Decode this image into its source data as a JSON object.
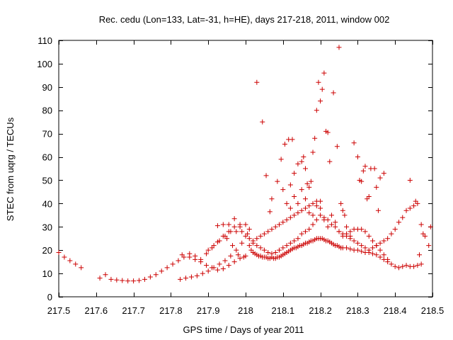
{
  "chart_data": {
    "type": "scatter",
    "title": "Rec. cedu (Lon=133, Lat=-31, h=HE), days 217-218, 2011, window 002",
    "xlabel": "GPS time / Days of year 2011",
    "ylabel": "STEC from uqrg / TECUs",
    "xlim": [
      217.5,
      218.5
    ],
    "ylim": [
      0,
      110
    ],
    "x_ticks": [
      217.5,
      217.6,
      217.7,
      217.8,
      217.9,
      218.0,
      218.1,
      218.2,
      218.3,
      218.4,
      218.5
    ],
    "x_tick_labels": [
      "217.5",
      "217.6",
      "217.7",
      "217.8",
      "217.9",
      "218",
      "218.1",
      "218.2",
      "218.3",
      "218.4",
      "218.5"
    ],
    "y_ticks": [
      0,
      10,
      20,
      30,
      40,
      50,
      60,
      70,
      80,
      90,
      100,
      110
    ],
    "y_tick_labels": [
      "0",
      "10",
      "20",
      "30",
      "40",
      "50",
      "60",
      "70",
      "80",
      "90",
      "100",
      "110"
    ],
    "grid": false,
    "marker": "+",
    "marker_color": "#cc0000",
    "series": [
      {
        "name": "STEC",
        "points": [
          [
            217.5,
            19
          ],
          [
            217.515,
            17
          ],
          [
            217.53,
            15.5
          ],
          [
            217.545,
            14
          ],
          [
            217.56,
            12.5
          ],
          [
            217.61,
            8
          ],
          [
            217.625,
            9.5
          ],
          [
            217.64,
            7.5
          ],
          [
            217.655,
            7.2
          ],
          [
            217.67,
            7
          ],
          [
            217.685,
            6.8
          ],
          [
            217.7,
            6.8
          ],
          [
            217.715,
            7
          ],
          [
            217.73,
            7.5
          ],
          [
            217.745,
            8.5
          ],
          [
            217.76,
            9.5
          ],
          [
            217.775,
            11
          ],
          [
            217.79,
            12.5
          ],
          [
            217.805,
            14
          ],
          [
            217.82,
            15.5
          ],
          [
            217.835,
            17
          ],
          [
            217.85,
            17
          ],
          [
            217.865,
            16
          ],
          [
            217.88,
            15
          ],
          [
            217.895,
            13.5
          ],
          [
            217.91,
            12.5
          ],
          [
            217.925,
            11.5
          ],
          [
            217.94,
            12
          ],
          [
            217.955,
            13.5
          ],
          [
            217.97,
            15
          ],
          [
            217.985,
            16.5
          ],
          [
            218.0,
            17.5
          ],
          [
            217.825,
            7.5
          ],
          [
            217.84,
            8
          ],
          [
            217.855,
            8.5
          ],
          [
            217.87,
            9
          ],
          [
            217.885,
            10
          ],
          [
            217.9,
            11
          ],
          [
            217.915,
            12.5
          ],
          [
            217.93,
            14
          ],
          [
            217.945,
            15.5
          ],
          [
            217.96,
            17.5
          ],
          [
            217.975,
            20
          ],
          [
            217.99,
            23
          ],
          [
            217.83,
            18
          ],
          [
            217.85,
            18.5
          ],
          [
            217.865,
            17.5
          ],
          [
            217.88,
            16
          ],
          [
            217.895,
            18.5
          ],
          [
            217.91,
            21
          ],
          [
            217.925,
            23.5
          ],
          [
            217.94,
            26
          ],
          [
            217.955,
            28
          ],
          [
            217.97,
            30
          ],
          [
            217.985,
            31
          ],
          [
            218.0,
            31
          ],
          [
            217.9,
            20
          ],
          [
            217.915,
            22
          ],
          [
            217.93,
            24
          ],
          [
            217.945,
            26
          ],
          [
            217.96,
            28
          ],
          [
            217.975,
            28
          ],
          [
            217.99,
            28
          ],
          [
            218.005,
            27
          ],
          [
            217.925,
            30.5
          ],
          [
            217.94,
            31
          ],
          [
            217.955,
            31
          ],
          [
            217.97,
            33.5
          ],
          [
            217.985,
            30
          ],
          [
            217.95,
            25
          ],
          [
            217.965,
            22
          ],
          [
            217.98,
            18
          ],
          [
            217.995,
            17
          ],
          [
            218.01,
            29
          ],
          [
            218.015,
            20
          ],
          [
            218.02,
            19
          ],
          [
            218.025,
            18.5
          ],
          [
            218.03,
            18
          ],
          [
            218.035,
            17.5
          ],
          [
            218.04,
            17.5
          ],
          [
            218.045,
            17
          ],
          [
            218.05,
            17
          ],
          [
            218.055,
            17
          ],
          [
            218.06,
            16.5
          ],
          [
            218.065,
            16.5
          ],
          [
            218.07,
            17
          ],
          [
            218.075,
            16.5
          ],
          [
            218.08,
            16.5
          ],
          [
            218.085,
            17
          ],
          [
            218.09,
            17
          ],
          [
            218.095,
            17.5
          ],
          [
            218.1,
            18
          ],
          [
            218.105,
            18.5
          ],
          [
            218.11,
            19
          ],
          [
            218.115,
            19.5
          ],
          [
            218.12,
            20
          ],
          [
            218.125,
            20.5
          ],
          [
            218.13,
            21
          ],
          [
            218.135,
            21
          ],
          [
            218.14,
            21.5
          ],
          [
            218.145,
            22
          ],
          [
            218.15,
            22
          ],
          [
            218.155,
            22.5
          ],
          [
            218.16,
            23
          ],
          [
            218.165,
            23
          ],
          [
            218.17,
            23.5
          ],
          [
            218.175,
            24
          ],
          [
            218.18,
            24
          ],
          [
            218.185,
            24.5
          ],
          [
            218.19,
            25
          ],
          [
            218.195,
            25
          ],
          [
            218.2,
            25
          ],
          [
            218.205,
            25
          ],
          [
            218.21,
            24.5
          ],
          [
            218.215,
            24
          ],
          [
            218.22,
            24
          ],
          [
            218.225,
            23.5
          ],
          [
            218.23,
            23
          ],
          [
            218.235,
            22.5
          ],
          [
            218.24,
            22
          ],
          [
            218.245,
            22
          ],
          [
            218.25,
            21.5
          ],
          [
            218.255,
            21
          ],
          [
            218.26,
            21
          ],
          [
            218.27,
            21
          ],
          [
            218.28,
            20.5
          ],
          [
            218.29,
            20
          ],
          [
            218.3,
            20
          ],
          [
            218.31,
            19.5
          ],
          [
            218.32,
            19
          ],
          [
            218.33,
            19
          ],
          [
            218.34,
            18.5
          ],
          [
            218.35,
            18
          ],
          [
            218.36,
            17
          ],
          [
            218.37,
            16
          ],
          [
            218.38,
            15
          ],
          [
            218.39,
            14
          ],
          [
            218.4,
            13
          ],
          [
            218.41,
            12.5
          ],
          [
            218.42,
            13
          ],
          [
            218.43,
            13.5
          ],
          [
            218.44,
            13
          ],
          [
            218.45,
            13
          ],
          [
            218.46,
            13.5
          ],
          [
            218.01,
            22
          ],
          [
            218.02,
            24
          ],
          [
            218.03,
            25
          ],
          [
            218.04,
            26
          ],
          [
            218.05,
            27
          ],
          [
            218.06,
            28
          ],
          [
            218.07,
            29
          ],
          [
            218.08,
            30
          ],
          [
            218.09,
            31
          ],
          [
            218.1,
            32
          ],
          [
            218.11,
            33
          ],
          [
            218.12,
            34
          ],
          [
            218.13,
            35
          ],
          [
            218.14,
            36
          ],
          [
            218.15,
            37
          ],
          [
            218.16,
            38
          ],
          [
            218.17,
            39
          ],
          [
            218.18,
            40
          ],
          [
            218.19,
            41
          ],
          [
            218.2,
            41
          ],
          [
            218.03,
            92
          ],
          [
            218.045,
            75
          ],
          [
            218.055,
            52
          ],
          [
            218.065,
            36.5
          ],
          [
            218.07,
            42
          ],
          [
            218.085,
            49.5
          ],
          [
            218.095,
            59
          ],
          [
            218.105,
            65.5
          ],
          [
            218.115,
            67.5
          ],
          [
            218.125,
            67.5
          ],
          [
            218.12,
            48
          ],
          [
            218.13,
            53
          ],
          [
            218.14,
            57
          ],
          [
            218.15,
            58
          ],
          [
            218.155,
            60
          ],
          [
            218.16,
            55
          ],
          [
            218.165,
            48.5
          ],
          [
            218.17,
            47
          ],
          [
            218.175,
            49.5
          ],
          [
            218.18,
            62
          ],
          [
            218.185,
            68
          ],
          [
            218.19,
            80
          ],
          [
            218.195,
            92
          ],
          [
            218.2,
            84
          ],
          [
            218.205,
            89
          ],
          [
            218.21,
            96
          ],
          [
            218.215,
            71
          ],
          [
            218.22,
            70.5
          ],
          [
            218.225,
            58
          ],
          [
            218.235,
            87.5
          ],
          [
            218.245,
            64.5
          ],
          [
            218.25,
            107
          ],
          [
            218.255,
            40
          ],
          [
            218.26,
            37
          ],
          [
            218.265,
            35
          ],
          [
            218.27,
            30
          ],
          [
            218.28,
            28
          ],
          [
            218.29,
            66
          ],
          [
            218.3,
            60
          ],
          [
            218.305,
            50
          ],
          [
            218.31,
            49.5
          ],
          [
            218.315,
            54
          ],
          [
            218.32,
            56
          ],
          [
            218.325,
            42
          ],
          [
            218.33,
            43
          ],
          [
            218.335,
            55
          ],
          [
            218.345,
            55
          ],
          [
            218.35,
            47
          ],
          [
            218.355,
            37
          ],
          [
            218.36,
            51
          ],
          [
            218.37,
            53
          ],
          [
            218.1,
            46
          ],
          [
            218.11,
            40
          ],
          [
            218.12,
            38
          ],
          [
            218.13,
            43
          ],
          [
            218.14,
            40
          ],
          [
            218.15,
            46
          ],
          [
            218.16,
            42
          ],
          [
            218.17,
            36
          ],
          [
            218.18,
            35
          ],
          [
            218.19,
            39
          ],
          [
            218.2,
            38
          ],
          [
            218.21,
            33
          ],
          [
            218.22,
            30
          ],
          [
            218.23,
            35
          ],
          [
            218.24,
            32
          ],
          [
            218.25,
            28
          ],
          [
            218.26,
            26
          ],
          [
            218.27,
            27
          ],
          [
            218.28,
            26
          ],
          [
            218.29,
            29
          ],
          [
            218.3,
            29
          ],
          [
            218.31,
            29
          ],
          [
            218.32,
            28
          ],
          [
            218.33,
            26
          ],
          [
            218.34,
            24
          ],
          [
            218.35,
            22
          ],
          [
            218.36,
            20
          ],
          [
            218.37,
            18
          ],
          [
            218.38,
            16
          ],
          [
            218.0,
            26
          ],
          [
            218.01,
            25
          ],
          [
            218.02,
            23
          ],
          [
            218.03,
            22
          ],
          [
            218.04,
            21
          ],
          [
            218.05,
            20
          ],
          [
            218.06,
            19
          ],
          [
            218.07,
            18.5
          ],
          [
            218.08,
            19
          ],
          [
            218.09,
            20
          ],
          [
            218.1,
            21
          ],
          [
            218.11,
            22
          ],
          [
            218.12,
            23
          ],
          [
            218.13,
            24
          ],
          [
            218.14,
            25
          ],
          [
            218.15,
            27
          ],
          [
            218.16,
            28
          ],
          [
            218.17,
            29
          ],
          [
            218.18,
            31
          ],
          [
            218.19,
            33
          ],
          [
            218.2,
            35
          ],
          [
            218.21,
            34
          ],
          [
            218.22,
            33
          ],
          [
            218.23,
            31
          ],
          [
            218.24,
            30
          ],
          [
            218.25,
            28
          ],
          [
            218.26,
            27
          ],
          [
            218.27,
            26
          ],
          [
            218.28,
            25
          ],
          [
            218.29,
            24
          ],
          [
            218.3,
            23
          ],
          [
            218.31,
            22
          ],
          [
            218.32,
            21
          ],
          [
            218.33,
            20
          ],
          [
            218.34,
            21
          ],
          [
            218.35,
            22
          ],
          [
            218.36,
            23
          ],
          [
            218.37,
            24
          ],
          [
            218.38,
            25
          ],
          [
            218.39,
            27
          ],
          [
            218.4,
            29
          ],
          [
            218.41,
            32
          ],
          [
            218.42,
            34
          ],
          [
            218.43,
            37
          ],
          [
            218.44,
            38
          ],
          [
            218.45,
            39
          ],
          [
            218.46,
            40
          ],
          [
            218.47,
            31
          ],
          [
            218.475,
            27
          ],
          [
            218.48,
            26
          ],
          [
            218.49,
            22
          ],
          [
            218.495,
            30
          ],
          [
            218.44,
            50
          ],
          [
            218.455,
            41
          ],
          [
            218.465,
            18
          ],
          [
            218.47,
            14
          ]
        ]
      }
    ]
  }
}
